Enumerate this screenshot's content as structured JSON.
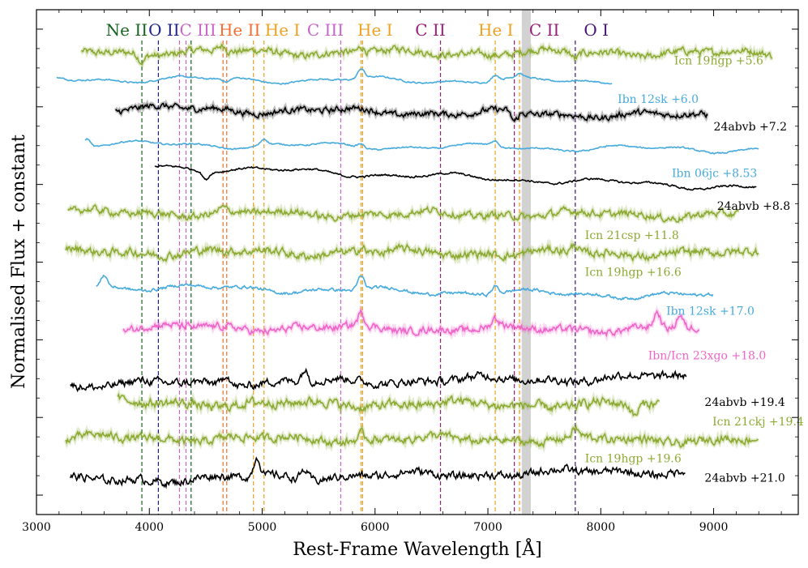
{
  "chart_data": {
    "type": "line",
    "title": "",
    "xlabel": "Rest-Frame Wavelength [Å]",
    "ylabel": "Normalised Flux + constant",
    "xlim": [
      3000,
      9750
    ],
    "ylim": [
      0,
      13
    ],
    "x_ticks": [
      3000,
      4000,
      5000,
      6000,
      7000,
      8000,
      9000
    ],
    "x_tick_labels": [
      "3000",
      "4000",
      "5000",
      "6000",
      "7000",
      "8000",
      "9000"
    ],
    "y_ticks": [
      0.5,
      2.5,
      4.5,
      6.5,
      8.5,
      10.5,
      12.5
    ],
    "telluric_band": [
      7300,
      7380
    ],
    "colors": {
      "Icn": "#8caa32",
      "Ibn": "#46aadc",
      "24abvb": "#000000",
      "Ibn/Icn": "#f064c8",
      "band": "#d2d2d2"
    },
    "line_markers": [
      {
        "ion": "Ne II",
        "color": "#14641e",
        "wavelengths": [
          3934
        ]
      },
      {
        "ion": "O II",
        "color": "#1e1e8c",
        "wavelengths": [
          4080
        ]
      },
      {
        "ion": "C III",
        "color": "#c864c8",
        "wavelengths": [
          4267,
          4325,
          5696
        ]
      },
      {
        "ion": "He II",
        "color": "#f06e32",
        "wavelengths": [
          4653,
          4686
        ]
      },
      {
        "ion": "He I",
        "color": "#f0a020",
        "wavelengths": [
          4922,
          5016,
          5876,
          5890,
          7065,
          7280
        ]
      },
      {
        "ion": "C II",
        "color": "#961e78",
        "wavelengths": [
          6580,
          7234
        ]
      },
      {
        "ion": "O I",
        "color": "#461478",
        "wavelengths": [
          7774
        ]
      },
      {
        "ion": "Ne II",
        "color": "#14641e",
        "wavelengths": [
          4370
        ]
      }
    ],
    "line_labels": [
      {
        "text": "Ne II",
        "wavelength": 3800,
        "color": "#14641e"
      },
      {
        "text": "O II",
        "wavelength": 4130,
        "color": "#1e1e8c"
      },
      {
        "text": "C III",
        "wavelength": 4430,
        "color": "#c864c8"
      },
      {
        "text": "He II",
        "wavelength": 4800,
        "color": "#f06e32"
      },
      {
        "text": "He I",
        "wavelength": 5180,
        "color": "#f0a020"
      },
      {
        "text": "C III",
        "wavelength": 5560,
        "color": "#c864c8"
      },
      {
        "text": "He I",
        "wavelength": 6000,
        "color": "#f0a020"
      },
      {
        "text": "C II",
        "wavelength": 6490,
        "color": "#961e78"
      },
      {
        "text": "He I",
        "wavelength": 7070,
        "color": "#f0a020"
      },
      {
        "text": "C II",
        "wavelength": 7500,
        "color": "#961e78"
      },
      {
        "text": "O I",
        "wavelength": 7960,
        "color": "#461478"
      }
    ],
    "series": [
      {
        "name": "Icn 19hgp +5.6",
        "class": "Icn",
        "wmin": 3400,
        "wmax": 9520,
        "offset": 11.9,
        "tilt": -0.03,
        "noise": 0.07,
        "raw": true,
        "features": [
          [
            3934,
            -0.2
          ],
          [
            4650,
            0.15
          ],
          [
            5880,
            0.15
          ],
          [
            7774,
            -0.15
          ]
        ],
        "label_wavelength": 8650,
        "label_offset": 11.7
      },
      {
        "name": "Ibn 12sk +6.0",
        "class": "Ibn",
        "wmin": 3180,
        "wmax": 8100,
        "offset": 11.2,
        "tilt": -0.05,
        "noise": 0.015,
        "raw": false,
        "features": [
          [
            4686,
            -0.1
          ],
          [
            5876,
            0.25
          ],
          [
            7065,
            0.15
          ],
          [
            7280,
            0.1
          ]
        ],
        "label_wavelength": 8150,
        "label_offset": 10.7
      },
      {
        "name": "24abvb +7.2",
        "class": "24abvb",
        "wmin": 3700,
        "wmax": 8950,
        "offset": 10.4,
        "tilt": -0.2,
        "noise": 0.06,
        "raw": true,
        "features": [
          [
            7234,
            -0.25
          ]
        ],
        "label_wavelength": 9000,
        "label_offset": 10.0
      },
      {
        "name": "Ibn 06jc +8.53",
        "class": "Ibn",
        "wmin": 3430,
        "wmax": 9400,
        "offset": 9.5,
        "tilt": -0.15,
        "noise": 0.015,
        "raw": false,
        "features": [
          [
            3450,
            0.2
          ],
          [
            5016,
            0.15
          ],
          [
            5876,
            0.1
          ],
          [
            7065,
            0.15
          ]
        ],
        "label_wavelength": 8630,
        "label_offset": 8.8
      },
      {
        "name": "24abvb +8.8",
        "class": "24abvb",
        "wmin": 4050,
        "wmax": 9380,
        "offset": 8.8,
        "tilt": -0.55,
        "noise": 0.02,
        "raw": false,
        "features": [
          [
            4500,
            -0.2
          ]
        ],
        "label_wavelength": 9030,
        "label_offset": 7.95
      },
      {
        "name": "Icn 21csp +11.8",
        "class": "Icn",
        "wmin": 3280,
        "wmax": 9230,
        "offset": 7.75,
        "tilt": -0.05,
        "noise": 0.07,
        "raw": true,
        "features": [
          [
            4650,
            0.1
          ]
        ],
        "label_wavelength": 7860,
        "label_offset": 7.2
      },
      {
        "name": "Icn 19hgp +16.6",
        "class": "Icn",
        "wmin": 3260,
        "wmax": 9400,
        "offset": 6.75,
        "tilt": -0.05,
        "noise": 0.08,
        "raw": true,
        "features": [
          [
            5880,
            0.15
          ],
          [
            7774,
            0.2
          ]
        ],
        "label_wavelength": 7860,
        "label_offset": 6.25
      },
      {
        "name": "Ibn 12sk +17.0",
        "class": "Ibn",
        "wmin": 3530,
        "wmax": 9000,
        "offset": 5.8,
        "tilt": -0.25,
        "noise": 0.03,
        "raw": false,
        "features": [
          [
            3600,
            0.3
          ],
          [
            5876,
            0.35
          ],
          [
            7065,
            0.2
          ]
        ],
        "label_wavelength": 8580,
        "label_offset": 5.25
      },
      {
        "name": "Ibn/Icn 23xgo +18.0",
        "class": "Ibn/Icn",
        "wmin": 3770,
        "wmax": 8880,
        "offset": 4.8,
        "tilt": -0.05,
        "noise": 0.07,
        "raw": true,
        "features": [
          [
            5876,
            0.3
          ],
          [
            7065,
            0.2
          ],
          [
            8500,
            0.4
          ],
          [
            8700,
            0.35
          ]
        ],
        "label_wavelength": 8420,
        "label_offset": 4.1
      },
      {
        "name": "24abvb +19.4",
        "class": "24abvb",
        "wmin": 3300,
        "wmax": 8760,
        "offset": 3.4,
        "tilt": 0.2,
        "noise": 0.08,
        "raw": false,
        "features": [
          [
            4686,
            0.3
          ],
          [
            5376,
            0.3
          ]
        ],
        "label_wavelength": 8920,
        "label_offset": 2.9
      },
      {
        "name": "Icn 21ckj +19.4",
        "class": "Icn",
        "wmin": 3720,
        "wmax": 8520,
        "offset": 2.85,
        "tilt": -0.05,
        "noise": 0.09,
        "raw": true,
        "features": [
          [
            8300,
            -0.3
          ]
        ],
        "label_wavelength": 8990,
        "label_offset": 2.4
      },
      {
        "name": "Icn 19hgp +19.6",
        "class": "Icn",
        "wmin": 3260,
        "wmax": 9400,
        "offset": 1.95,
        "tilt": -0.05,
        "noise": 0.08,
        "raw": true,
        "features": [
          [
            5880,
            0.15
          ],
          [
            7774,
            0.2
          ]
        ],
        "label_wavelength": 7860,
        "label_offset": 1.45
      },
      {
        "name": "24abvb +21.0",
        "class": "24abvb",
        "wmin": 3300,
        "wmax": 8750,
        "offset": 0.95,
        "tilt": 0.25,
        "noise": 0.08,
        "raw": false,
        "features": [
          [
            4955,
            0.5
          ],
          [
            5376,
            0.25
          ]
        ],
        "label_wavelength": 8920,
        "label_offset": 0.95
      }
    ]
  }
}
